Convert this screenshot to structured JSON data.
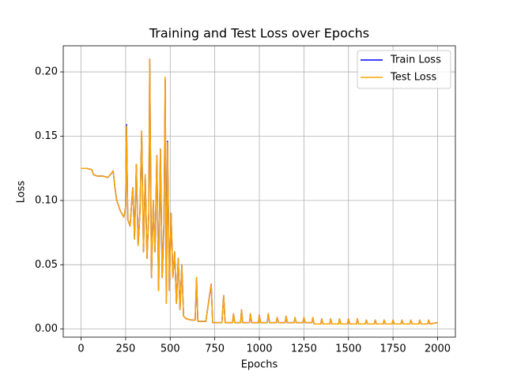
{
  "chart_data": {
    "type": "line",
    "title": "Training and Test Loss over Epochs",
    "x_label": "Epochs",
    "y_label": "Loss",
    "x": [
      0,
      30,
      60,
      70,
      90,
      120,
      150,
      170,
      180,
      190,
      200,
      220,
      240,
      250,
      255,
      262,
      275,
      290,
      300,
      310,
      320,
      330,
      340,
      350,
      360,
      370,
      380,
      385,
      395,
      405,
      415,
      425,
      435,
      445,
      455,
      465,
      472,
      478,
      485,
      495,
      505,
      515,
      525,
      535,
      545,
      555,
      565,
      575,
      590,
      620,
      640,
      648,
      655,
      700,
      730,
      738,
      790,
      800,
      808,
      850,
      855,
      862,
      895,
      900,
      907,
      945,
      950,
      957,
      995,
      1000,
      1007,
      1045,
      1050,
      1057,
      1095,
      1100,
      1107,
      1145,
      1150,
      1157,
      1195,
      1200,
      1207,
      1245,
      1250,
      1257,
      1295,
      1300,
      1307,
      1345,
      1350,
      1357,
      1395,
      1400,
      1407,
      1445,
      1450,
      1457,
      1495,
      1500,
      1507,
      1545,
      1550,
      1557,
      1595,
      1600,
      1607,
      1645,
      1650,
      1657,
      1695,
      1700,
      1707,
      1745,
      1750,
      1757,
      1795,
      1800,
      1807,
      1845,
      1850,
      1857,
      1895,
      1900,
      1907,
      1945,
      1950,
      1957,
      2000
    ],
    "series": [
      {
        "name": "Train Loss",
        "color": "#0000ff",
        "values": [
          0.125,
          0.125,
          0.124,
          0.12,
          0.119,
          0.119,
          0.118,
          0.121,
          0.123,
          0.11,
          0.1,
          0.092,
          0.087,
          0.095,
          0.159,
          0.085,
          0.08,
          0.11,
          0.07,
          0.128,
          0.065,
          0.09,
          0.154,
          0.06,
          0.12,
          0.055,
          0.09,
          0.21,
          0.04,
          0.1,
          0.06,
          0.135,
          0.03,
          0.14,
          0.04,
          0.08,
          0.194,
          0.02,
          0.146,
          0.03,
          0.09,
          0.04,
          0.06,
          0.02,
          0.055,
          0.015,
          0.05,
          0.01,
          0.008,
          0.007,
          0.007,
          0.04,
          0.006,
          0.006,
          0.035,
          0.005,
          0.005,
          0.026,
          0.005,
          0.005,
          0.012,
          0.005,
          0.005,
          0.015,
          0.005,
          0.005,
          0.012,
          0.005,
          0.005,
          0.011,
          0.005,
          0.005,
          0.012,
          0.005,
          0.005,
          0.009,
          0.005,
          0.005,
          0.01,
          0.005,
          0.005,
          0.009,
          0.005,
          0.005,
          0.009,
          0.005,
          0.005,
          0.009,
          0.004,
          0.004,
          0.008,
          0.004,
          0.004,
          0.008,
          0.004,
          0.004,
          0.008,
          0.004,
          0.004,
          0.008,
          0.004,
          0.004,
          0.008,
          0.004,
          0.004,
          0.007,
          0.004,
          0.004,
          0.007,
          0.004,
          0.004,
          0.007,
          0.004,
          0.004,
          0.007,
          0.004,
          0.004,
          0.007,
          0.004,
          0.004,
          0.007,
          0.004,
          0.004,
          0.007,
          0.004,
          0.004,
          0.007,
          0.004,
          0.005
        ]
      },
      {
        "name": "Test Loss",
        "color": "#ffa500",
        "values": [
          0.125,
          0.125,
          0.124,
          0.12,
          0.119,
          0.119,
          0.118,
          0.121,
          0.123,
          0.11,
          0.1,
          0.092,
          0.087,
          0.095,
          0.158,
          0.085,
          0.08,
          0.11,
          0.07,
          0.128,
          0.065,
          0.09,
          0.154,
          0.06,
          0.12,
          0.055,
          0.09,
          0.21,
          0.04,
          0.1,
          0.06,
          0.135,
          0.03,
          0.14,
          0.04,
          0.085,
          0.196,
          0.02,
          0.145,
          0.03,
          0.09,
          0.04,
          0.06,
          0.02,
          0.055,
          0.015,
          0.05,
          0.01,
          0.008,
          0.007,
          0.007,
          0.04,
          0.006,
          0.006,
          0.035,
          0.005,
          0.005,
          0.026,
          0.005,
          0.005,
          0.012,
          0.005,
          0.005,
          0.015,
          0.005,
          0.005,
          0.012,
          0.005,
          0.005,
          0.011,
          0.005,
          0.005,
          0.012,
          0.005,
          0.005,
          0.009,
          0.005,
          0.005,
          0.01,
          0.005,
          0.005,
          0.009,
          0.005,
          0.005,
          0.009,
          0.005,
          0.005,
          0.009,
          0.004,
          0.004,
          0.008,
          0.004,
          0.004,
          0.008,
          0.004,
          0.004,
          0.008,
          0.004,
          0.004,
          0.008,
          0.004,
          0.004,
          0.008,
          0.004,
          0.004,
          0.007,
          0.004,
          0.004,
          0.007,
          0.004,
          0.004,
          0.007,
          0.004,
          0.004,
          0.007,
          0.004,
          0.004,
          0.007,
          0.004,
          0.004,
          0.007,
          0.004,
          0.004,
          0.007,
          0.004,
          0.004,
          0.007,
          0.004,
          0.005
        ]
      }
    ],
    "xlim": [
      -100,
      2100
    ],
    "xticks": [
      0,
      250,
      500,
      750,
      1000,
      1250,
      1500,
      1750,
      2000
    ],
    "ylim": [
      -0.0063,
      0.2203
    ],
    "yticks": [
      {
        "value": 0,
        "label": "0.00"
      },
      {
        "value": 0.05,
        "label": "0.05"
      },
      {
        "value": 0.1,
        "label": "0.10"
      },
      {
        "value": 0.15,
        "label": "0.15"
      },
      {
        "value": 0.2,
        "label": "0.20"
      }
    ],
    "grid": true,
    "legend": "upper right"
  }
}
